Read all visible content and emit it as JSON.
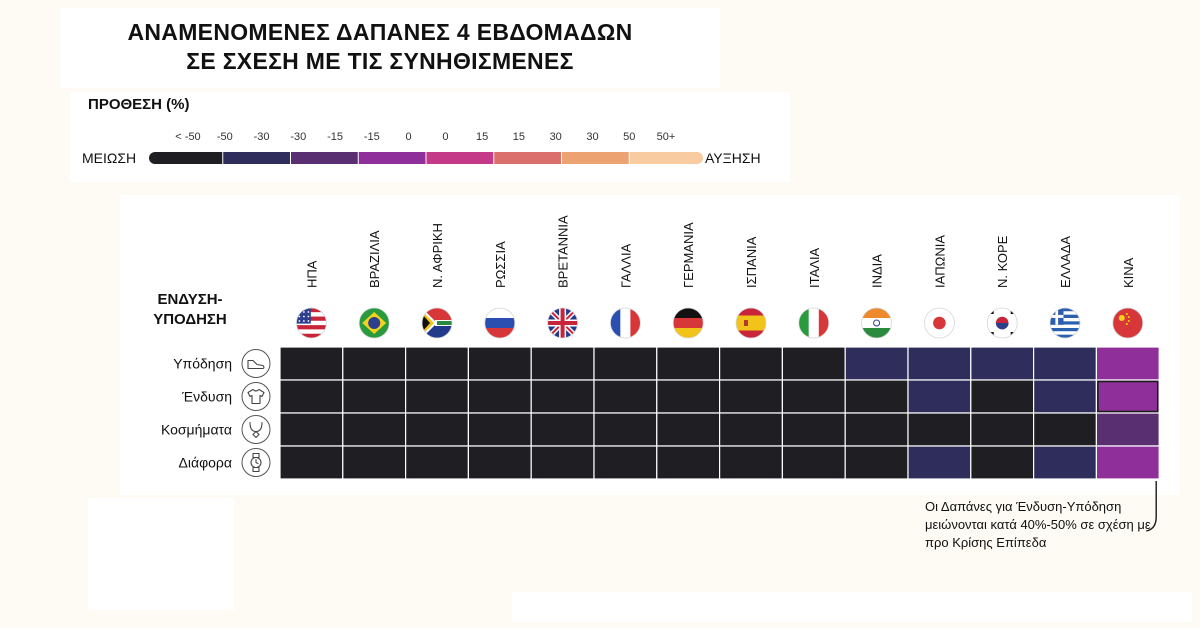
{
  "title": {
    "line1": "ΑΝΑΜΕΝΟΜΕΝΕΣ ΔΑΠΑΝΕΣ 4 ΕΒΔΟΜΑΔΩΝ",
    "line2": "ΣΕ ΣΧΕΣΗ ΜΕ ΤΙΣ ΣΥΝΗΘΙΣΜΕΝΕΣ"
  },
  "legend": {
    "title": "ΠΡΟΘΕΣΗ (%)",
    "left_label": "ΜΕΙΩΣΗ",
    "right_label": "ΑΥΞΗΣΗ",
    "ticks": [
      "< -50",
      "-50",
      "-30",
      "-30",
      "-15",
      "-15",
      "0",
      "0",
      "15",
      "15",
      "30",
      "30",
      "50",
      "50+"
    ],
    "bins": [
      {
        "range": "< -50",
        "color": "#1f1f23"
      },
      {
        "range": "-50 to -30",
        "color": "#2e2d5c"
      },
      {
        "range": "-30 to -15",
        "color": "#5a2f72"
      },
      {
        "range": "-15 to 0",
        "color": "#8e2f9a"
      },
      {
        "range": "0 to 15",
        "color": "#c53a88"
      },
      {
        "range": "15 to 30",
        "color": "#da6f6c"
      },
      {
        "range": "30 to 50",
        "color": "#eda272"
      },
      {
        "range": "50+",
        "color": "#f8cba0"
      }
    ]
  },
  "category_heading": {
    "line1": "ΕΝΔΥΣΗ-",
    "line2": "ΥΠΟΔΗΣΗ"
  },
  "chart_data": {
    "type": "heatmap",
    "title": "ΑΝΑΜΕΝΟΜΕΝΕΣ ΔΑΠΑΝΕΣ 4 ΕΒΔΟΜΑΔΩΝ ΣΕ ΣΧΕΣΗ ΜΕ ΤΙΣ ΣΥΝΗΘΙΣΜΕΝΕΣ",
    "x": [
      "ΗΠΑ",
      "ΒΡΑΖΙΛΙΑ",
      "Ν. ΑΦΡΙΚΗ",
      "ΡΩΣΣΙΑ",
      "ΒΡΕΤΑΝΝΙΑ",
      "ΓΑΛΛΙΑ",
      "ΓΕΡΜΑΝΙΑ",
      "ΙΣΠΑΝΙΑ",
      "ΙΤΑΛΙΑ",
      "ΙΝΔΙΑ",
      "ΙΑΠΩΝΙΑ",
      "Ν. ΚΟΡΕ",
      "ΕΛΛΑΔΑ",
      "ΚΙΝΑ"
    ],
    "y": [
      "Υπόδηση",
      "Ένδυση",
      "Κοσμήματα",
      "Διάφορα"
    ],
    "value_bins": [
      [
        "< -50",
        "< -50",
        "< -50",
        "< -50",
        "< -50",
        "< -50",
        "< -50",
        "< -50",
        "< -50",
        "-50 to -30",
        "-50 to -30",
        "-50 to -30",
        "-50 to -30",
        "-15 to 0"
      ],
      [
        "< -50",
        "< -50",
        "< -50",
        "< -50",
        "< -50",
        "< -50",
        "< -50",
        "< -50",
        "< -50",
        "< -50",
        "-50 to -30",
        "< -50",
        "-50 to -30",
        "-15 to 0"
      ],
      [
        "< -50",
        "< -50",
        "< -50",
        "< -50",
        "< -50",
        "< -50",
        "< -50",
        "< -50",
        "< -50",
        "< -50",
        "< -50",
        "< -50",
        "< -50",
        "-30 to -15"
      ],
      [
        "< -50",
        "< -50",
        "< -50",
        "< -50",
        "< -50",
        "< -50",
        "< -50",
        "< -50",
        "< -50",
        "< -50",
        "-50 to -30",
        "< -50",
        "-50 to -30",
        "-15 to 0"
      ]
    ]
  },
  "flags": [
    "us",
    "br",
    "za",
    "ru",
    "gb",
    "fr",
    "de",
    "es",
    "it",
    "in",
    "jp",
    "kr",
    "gr",
    "cn"
  ],
  "row_icons": [
    "shoe-icon",
    "shirt-icon",
    "necklace-icon",
    "watch-icon"
  ],
  "annotation": "Οι Δαπάνες για Ένδυση-Υπόδηση μειώνονται κατά 40%-50% σε σχέση με προ Κρίσης Επίπεδα"
}
